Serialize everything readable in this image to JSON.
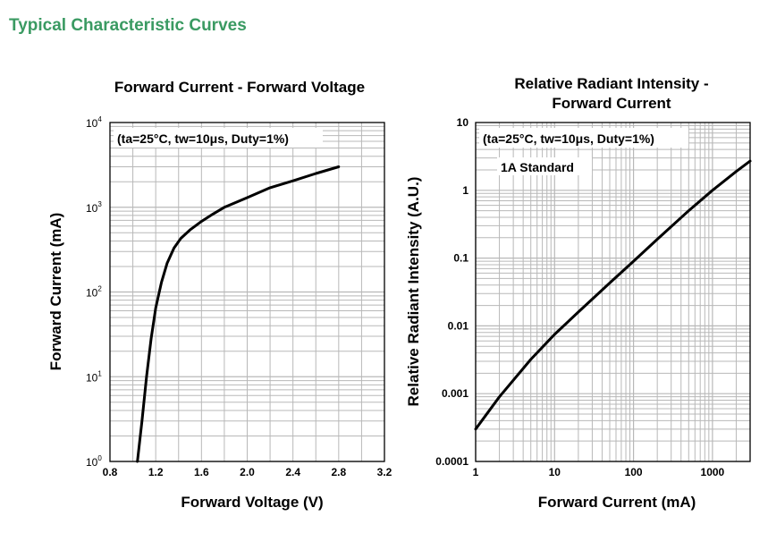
{
  "section_title": "Typical Characteristic Curves",
  "colors": {
    "section_title": "#3a9a62",
    "grid": "#b8b8b8",
    "curve": "#000000"
  },
  "chart_data": [
    {
      "type": "line",
      "title": "Forward Current - Forward Voltage",
      "annotation": "(ta=25°C, tw=10μs, Duty=1%)",
      "xlabel": "Forward Voltage (V)",
      "ylabel": "Forward Current (mA)",
      "xlim": [
        0.8,
        3.2
      ],
      "ylim": [
        1,
        10000
      ],
      "yscale": "log",
      "grid": true,
      "x_ticks": [
        "0.8",
        "1.2",
        "1.6",
        "2.0",
        "2.4",
        "2.8",
        "3.2"
      ],
      "y_ticks": [
        {
          "base": "10",
          "exp": "0"
        },
        {
          "base": "10",
          "exp": "1"
        },
        {
          "base": "10",
          "exp": "2"
        },
        {
          "base": "10",
          "exp": "3"
        },
        {
          "base": "10",
          "exp": "4"
        }
      ],
      "x": [
        1.04,
        1.08,
        1.12,
        1.16,
        1.2,
        1.25,
        1.3,
        1.36,
        1.42,
        1.5,
        1.6,
        1.7,
        1.8,
        2.0,
        2.2,
        2.4,
        2.6,
        2.8
      ],
      "y": [
        1,
        3,
        10,
        28,
        65,
        130,
        220,
        330,
        430,
        540,
        680,
        830,
        1000,
        1300,
        1700,
        2050,
        2500,
        3000
      ]
    },
    {
      "type": "line",
      "title": [
        "Relative Radiant Intensity -",
        "Forward Current"
      ],
      "annotation": "(ta=25°C, tw=10μs, Duty=1%)",
      "annotation2": "1A Standard",
      "xlabel": "Forward Current (mA)",
      "ylabel": "Relative Radiant Intensity (A.U.)",
      "xlim": [
        1,
        3000
      ],
      "ylim": [
        0.0001,
        10
      ],
      "xscale": "log",
      "yscale": "log",
      "grid": true,
      "x_ticks": [
        "1",
        "10",
        "100",
        "1000"
      ],
      "y_ticks": [
        "0.0001",
        "0.001",
        "0.01",
        "0.1",
        "1",
        "10"
      ],
      "x": [
        1,
        2,
        5,
        10,
        20,
        50,
        100,
        200,
        500,
        1000,
        2000,
        3000
      ],
      "y": [
        0.0003,
        0.0009,
        0.0032,
        0.0075,
        0.016,
        0.043,
        0.09,
        0.19,
        0.5,
        1.0,
        1.9,
        2.7
      ]
    }
  ]
}
